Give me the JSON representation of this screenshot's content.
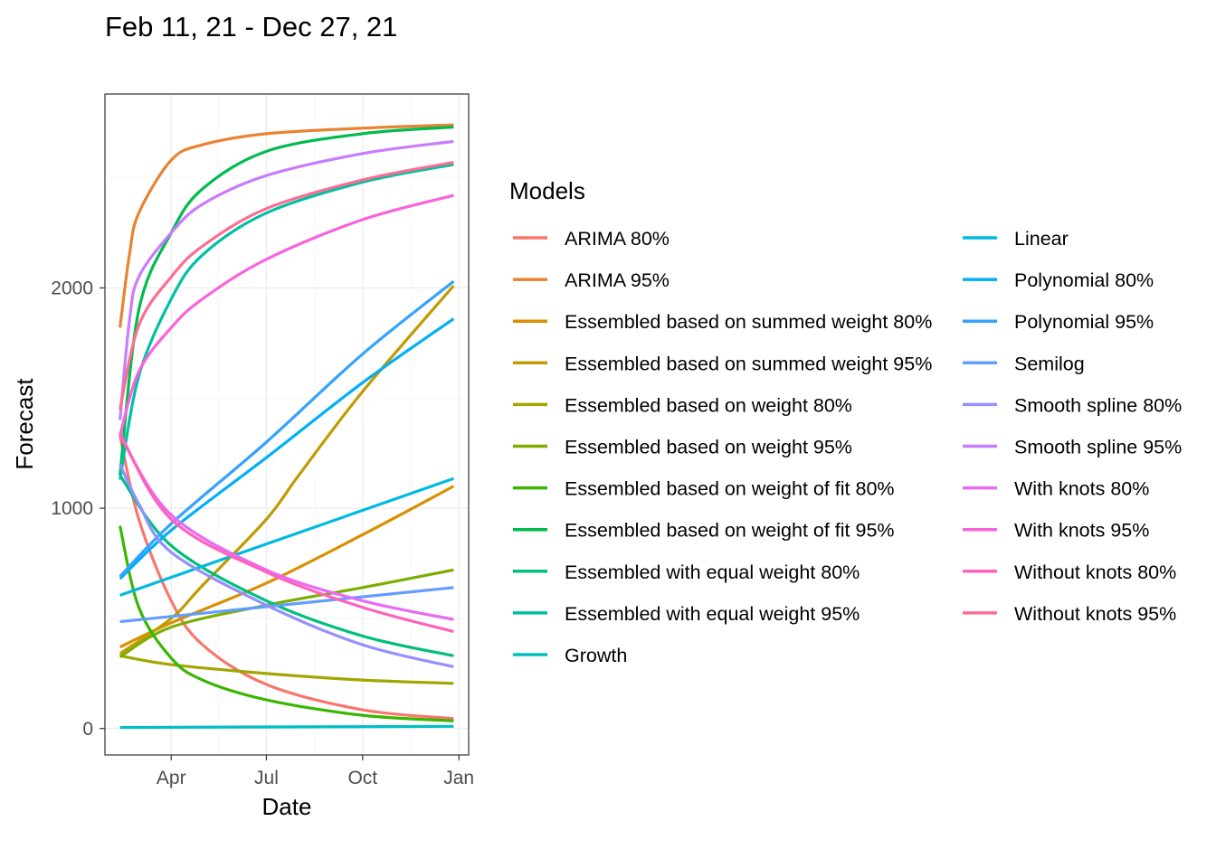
{
  "chart_data": {
    "type": "line",
    "title": "Feb 11, 21 - Dec 27, 21",
    "xlabel": "Date",
    "ylabel": "Forecast",
    "x_range": [
      "2021-02-11",
      "2021-12-27"
    ],
    "x_ticks": [
      {
        "date": "2021-04-01",
        "label": "Apr"
      },
      {
        "date": "2021-07-01",
        "label": "Jul"
      },
      {
        "date": "2021-10-01",
        "label": "Oct"
      },
      {
        "date": "2022-01-01",
        "label": "Jan"
      }
    ],
    "ylim": [
      -120,
      2880
    ],
    "y_ticks": [
      0,
      1000,
      2000
    ],
    "grid": true,
    "legend_title": "Models",
    "legend_position": "right",
    "series": [
      {
        "name": "ARIMA 80%",
        "color": "#F8766D",
        "x": [
          "2021-02-11",
          "2021-03-01",
          "2021-04-01",
          "2021-05-01",
          "2021-07-01",
          "2021-10-01",
          "2021-12-27"
        ],
        "values": [
          1330,
          950,
          580,
          380,
          200,
          85,
          45
        ]
      },
      {
        "name": "ARIMA 95%",
        "color": "#EA8331",
        "x": [
          "2021-02-11",
          "2021-02-20",
          "2021-03-01",
          "2021-04-01",
          "2021-05-01",
          "2021-07-01",
          "2021-10-01",
          "2021-12-27"
        ],
        "values": [
          1820,
          2150,
          2340,
          2580,
          2650,
          2700,
          2725,
          2740
        ]
      },
      {
        "name": "Essembled based on summed weight 80%",
        "color": "#D89000",
        "x": [
          "2021-02-11",
          "2021-04-01",
          "2021-07-01",
          "2021-10-01",
          "2021-12-27"
        ],
        "values": [
          370,
          480,
          660,
          880,
          1100
        ]
      },
      {
        "name": "Essembled based on summed weight 95%",
        "color": "#C09B00",
        "x": [
          "2021-02-11",
          "2021-04-01",
          "2021-05-01",
          "2021-07-01",
          "2021-08-01",
          "2021-10-01",
          "2021-12-27"
        ],
        "values": [
          340,
          500,
          650,
          950,
          1150,
          1530,
          2010
        ]
      },
      {
        "name": "Essembled based on weight 80%",
        "color": "#A3A500",
        "x": [
          "2021-02-11",
          "2021-04-01",
          "2021-07-01",
          "2021-10-01",
          "2021-12-27"
        ],
        "values": [
          330,
          290,
          250,
          220,
          205
        ]
      },
      {
        "name": "Essembled based on weight 95%",
        "color": "#7CAE00",
        "x": [
          "2021-02-11",
          "2021-04-01",
          "2021-07-01",
          "2021-10-01",
          "2021-12-27"
        ],
        "values": [
          325,
          460,
          560,
          640,
          720
        ]
      },
      {
        "name": "Essembled based on weight of fit 80%",
        "color": "#39B600",
        "x": [
          "2021-02-11",
          "2021-03-01",
          "2021-04-01",
          "2021-05-01",
          "2021-07-01",
          "2021-10-01",
          "2021-12-27"
        ],
        "values": [
          920,
          550,
          320,
          220,
          130,
          60,
          35
        ]
      },
      {
        "name": "Essembled based on weight of fit 95%",
        "color": "#00BB4E",
        "x": [
          "2021-02-11",
          "2021-03-01",
          "2021-04-01",
          "2021-05-01",
          "2021-07-01",
          "2021-10-01",
          "2021-12-27"
        ],
        "values": [
          1150,
          1900,
          2250,
          2450,
          2620,
          2700,
          2730
        ]
      },
      {
        "name": "Essembled with equal weight 80%",
        "color": "#00BF7D",
        "x": [
          "2021-02-11",
          "2021-04-01",
          "2021-07-01",
          "2021-10-01",
          "2021-12-27"
        ],
        "values": [
          1150,
          830,
          580,
          420,
          330
        ]
      },
      {
        "name": "Essembled with equal weight 95%",
        "color": "#00C1A3",
        "x": [
          "2021-02-11",
          "2021-03-01",
          "2021-04-01",
          "2021-05-01",
          "2021-07-01",
          "2021-10-01",
          "2021-12-27"
        ],
        "values": [
          1130,
          1600,
          1950,
          2150,
          2340,
          2480,
          2560
        ]
      },
      {
        "name": "Growth",
        "color": "#00BFC4",
        "x": [
          "2021-02-11",
          "2021-12-27"
        ],
        "values": [
          5,
          10
        ]
      },
      {
        "name": "Linear",
        "color": "#00BAE0",
        "x": [
          "2021-02-11",
          "2021-12-27"
        ],
        "values": [
          605,
          1135
        ]
      },
      {
        "name": "Polynomial 80%",
        "color": "#00B0F6",
        "x": [
          "2021-02-11",
          "2021-04-01",
          "2021-07-01",
          "2021-10-01",
          "2021-12-27"
        ],
        "values": [
          680,
          900,
          1230,
          1570,
          1860
        ]
      },
      {
        "name": "Polynomial 95%",
        "color": "#35A2FF",
        "x": [
          "2021-02-11",
          "2021-04-01",
          "2021-07-01",
          "2021-10-01",
          "2021-12-27"
        ],
        "values": [
          690,
          930,
          1300,
          1700,
          2030
        ]
      },
      {
        "name": "Semilog",
        "color": "#619CFF",
        "x": [
          "2021-02-11",
          "2021-12-27"
        ],
        "values": [
          485,
          640
        ]
      },
      {
        "name": "Smooth spline 80%",
        "color": "#9590FF",
        "x": [
          "2021-02-11",
          "2021-03-01",
          "2021-04-01",
          "2021-07-01",
          "2021-10-01",
          "2021-12-27"
        ],
        "values": [
          1200,
          1020,
          800,
          560,
          380,
          280
        ]
      },
      {
        "name": "Smooth spline 95%",
        "color": "#C77CFF",
        "x": [
          "2021-02-11",
          "2021-02-20",
          "2021-03-01",
          "2021-04-01",
          "2021-05-01",
          "2021-07-01",
          "2021-10-01",
          "2021-12-27"
        ],
        "values": [
          1400,
          1850,
          2050,
          2250,
          2380,
          2510,
          2610,
          2665
        ]
      },
      {
        "name": "With knots 80%",
        "color": "#E76BF3",
        "x": [
          "2021-02-11",
          "2021-04-01",
          "2021-07-01",
          "2021-10-01",
          "2021-12-27"
        ],
        "values": [
          1330,
          970,
          720,
          580,
          495
        ]
      },
      {
        "name": "With knots 95%",
        "color": "#FA62DB",
        "x": [
          "2021-02-11",
          "2021-03-01",
          "2021-04-01",
          "2021-05-01",
          "2021-07-01",
          "2021-10-01",
          "2021-12-27"
        ],
        "values": [
          1330,
          1620,
          1820,
          1950,
          2130,
          2310,
          2420
        ]
      },
      {
        "name": "Without knots 80%",
        "color": "#FF62BC",
        "x": [
          "2021-02-11",
          "2021-04-01",
          "2021-07-01",
          "2021-10-01",
          "2021-12-27"
        ],
        "values": [
          1340,
          950,
          710,
          550,
          440
        ]
      },
      {
        "name": "Without knots 95%",
        "color": "#FF6C91",
        "x": [
          "2021-02-11",
          "2021-03-01",
          "2021-04-01",
          "2021-05-01",
          "2021-07-01",
          "2021-10-01",
          "2021-12-27"
        ],
        "values": [
          1450,
          1830,
          2050,
          2190,
          2360,
          2490,
          2570
        ]
      }
    ]
  }
}
